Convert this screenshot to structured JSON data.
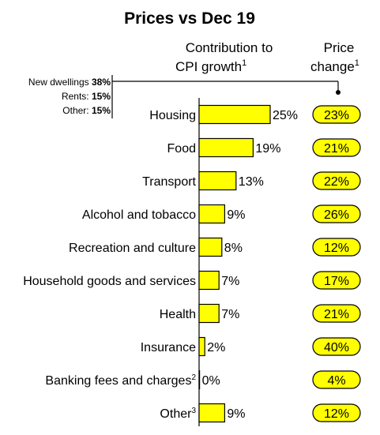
{
  "colors": {
    "bar": "#ffff00",
    "stroke": "#000000",
    "pill": "#ffff00"
  },
  "chart_data": {
    "type": "bar",
    "orientation": "horizontal",
    "title": "Prices vs Dec 19",
    "contribution_header": {
      "line1": "Contribution to",
      "line2": "CPI growth",
      "sup": "1"
    },
    "price_header": {
      "line1": "Price",
      "line2": "change",
      "sup": "1"
    },
    "categories": [
      "Housing",
      "Food",
      "Transport",
      "Alcohol and tobacco",
      "Recreation and culture",
      "Household goods and services",
      "Health",
      "Insurance",
      "Banking fees and charges",
      "Other"
    ],
    "category_sups": [
      "",
      "",
      "",
      "",
      "",
      "",
      "",
      "",
      "2",
      "3"
    ],
    "series": [
      {
        "values": [
          25,
          19,
          13,
          9,
          8,
          7,
          7,
          2,
          0,
          9
        ],
        "labels": [
          "25%",
          "19%",
          "13%",
          "9%",
          "8%",
          "7%",
          "7%",
          "2%",
          "0%",
          "9%"
        ]
      }
    ],
    "price_change": [
      23,
      21,
      22,
      26,
      12,
      17,
      21,
      40,
      4,
      12
    ],
    "price_change_labels": [
      "23%",
      "21%",
      "22%",
      "26%",
      "12%",
      "17%",
      "21%",
      "40%",
      "4%",
      "12%"
    ],
    "housing_breakdown": [
      {
        "label": "New dwellings",
        "value": "38%"
      },
      {
        "label": "Rents:",
        "value": "15%"
      },
      {
        "label": "Other:",
        "value": "15%"
      }
    ],
    "xlim": [
      0,
      25
    ]
  }
}
